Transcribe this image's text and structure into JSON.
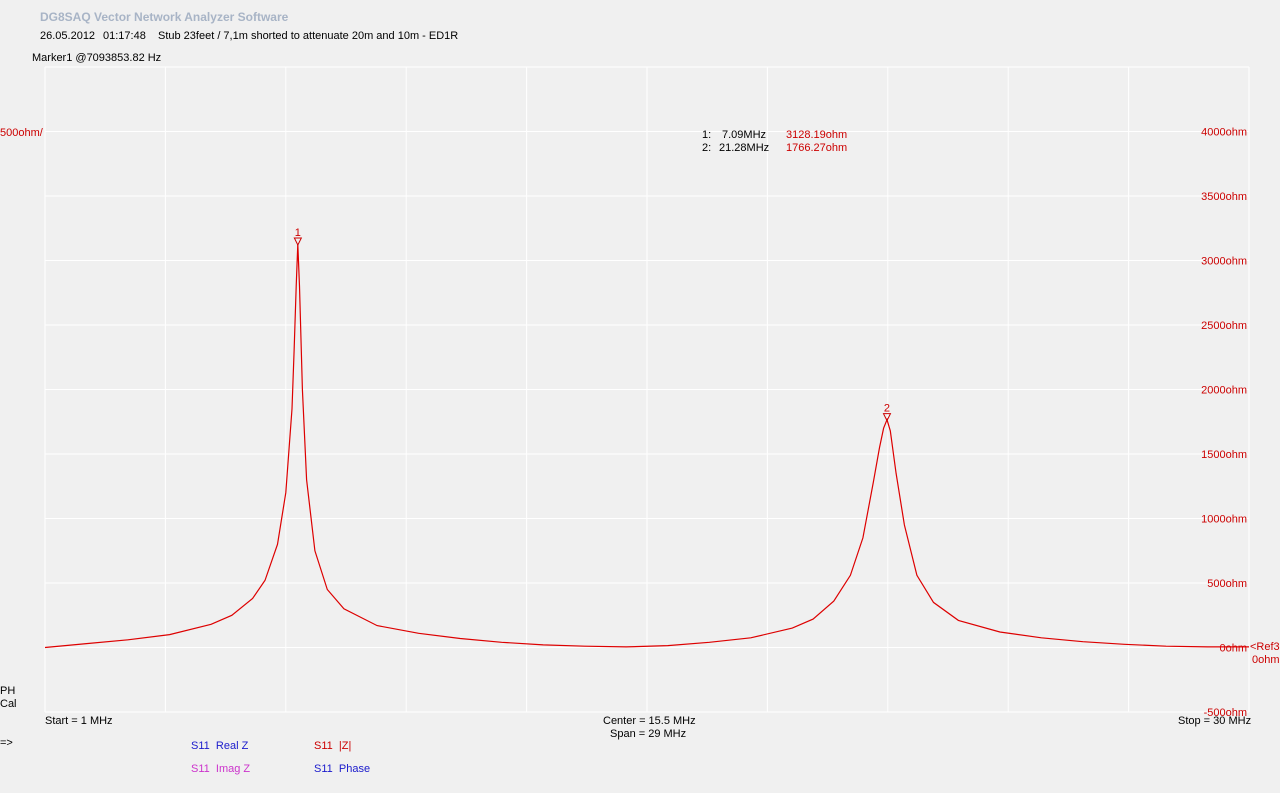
{
  "app": {
    "title": "DG8SAQ Vector Network Analyzer Software",
    "date": "26.05.2012",
    "time": "01:17:48",
    "description": "Stub 23feet / 7,1m shorted to attenuate 20m and 10m - ED1R",
    "marker_header": "Marker1 @7093853.82 Hz"
  },
  "scale_label": "500ohm/",
  "markers_table": [
    {
      "id": "1:",
      "freq": "7.09MHz",
      "value": "3128.19ohm"
    },
    {
      "id": "2:",
      "freq": "21.28MHz",
      "value": "1766.27ohm"
    }
  ],
  "ref_label": {
    "line1": "<Ref3",
    "line2": "0ohm"
  },
  "status": {
    "ph": "PH",
    "cal": "Cal",
    "prompt": "=>"
  },
  "freq_axis": {
    "start": "Start = 1 MHz",
    "center": "Center = 15.5 MHz",
    "span": "Span = 29 MHz",
    "stop": "Stop = 30 MHz"
  },
  "legend": [
    {
      "param": "S11",
      "name": "Real Z",
      "color": "#1a1acc"
    },
    {
      "param": "S11",
      "name": "|Z|",
      "color": "#cc0000"
    },
    {
      "param": "S11",
      "name": "Imag Z",
      "color": "#cc33cc"
    },
    {
      "param": "S11",
      "name": "Phase",
      "color": "#1a1acc"
    }
  ],
  "colors": {
    "trace": "#dd0000",
    "grid": "#ffffff",
    "background": "#f0f0f0",
    "title": "#a8b4c6"
  },
  "chart_data": {
    "type": "line",
    "xlabel": "",
    "ylabel": "",
    "xlim": [
      1,
      30
    ],
    "ylim": [
      -500,
      4500
    ],
    "y_ticks": [
      4000,
      3500,
      3000,
      2500,
      2000,
      1500,
      1000,
      500,
      0,
      -500
    ],
    "y_tick_labels": [
      "4000ohm",
      "3500ohm",
      "3000ohm",
      "2500ohm",
      "2000ohm",
      "1500ohm",
      "1000ohm",
      "500ohm",
      "0ohm",
      "-500ohm"
    ],
    "grid": true,
    "series": [
      {
        "name": "S11 |Z|",
        "x": [
          1,
          2,
          3,
          4,
          5,
          5.5,
          6,
          6.3,
          6.6,
          6.8,
          6.95,
          7.0,
          7.05,
          7.09,
          7.13,
          7.2,
          7.3,
          7.5,
          7.8,
          8.2,
          9,
          10,
          11,
          12,
          13,
          14,
          15,
          16,
          17,
          18,
          19,
          19.5,
          20,
          20.4,
          20.7,
          20.95,
          21.1,
          21.2,
          21.28,
          21.36,
          21.5,
          21.7,
          22,
          22.4,
          23,
          24,
          25,
          26,
          27,
          28,
          29,
          30
        ],
        "y": [
          0,
          30,
          60,
          100,
          180,
          250,
          380,
          520,
          800,
          1200,
          1850,
          2300,
          2800,
          3128,
          2800,
          2000,
          1300,
          750,
          450,
          300,
          170,
          110,
          70,
          40,
          20,
          10,
          5,
          15,
          40,
          75,
          150,
          220,
          360,
          560,
          850,
          1280,
          1550,
          1700,
          1766,
          1680,
          1350,
          950,
          560,
          350,
          210,
          120,
          75,
          45,
          25,
          10,
          5,
          5
        ]
      }
    ],
    "markers": [
      {
        "label": "1",
        "x": 7.09,
        "y": 3128.19
      },
      {
        "label": "2",
        "x": 21.28,
        "y": 1766.27
      }
    ]
  }
}
